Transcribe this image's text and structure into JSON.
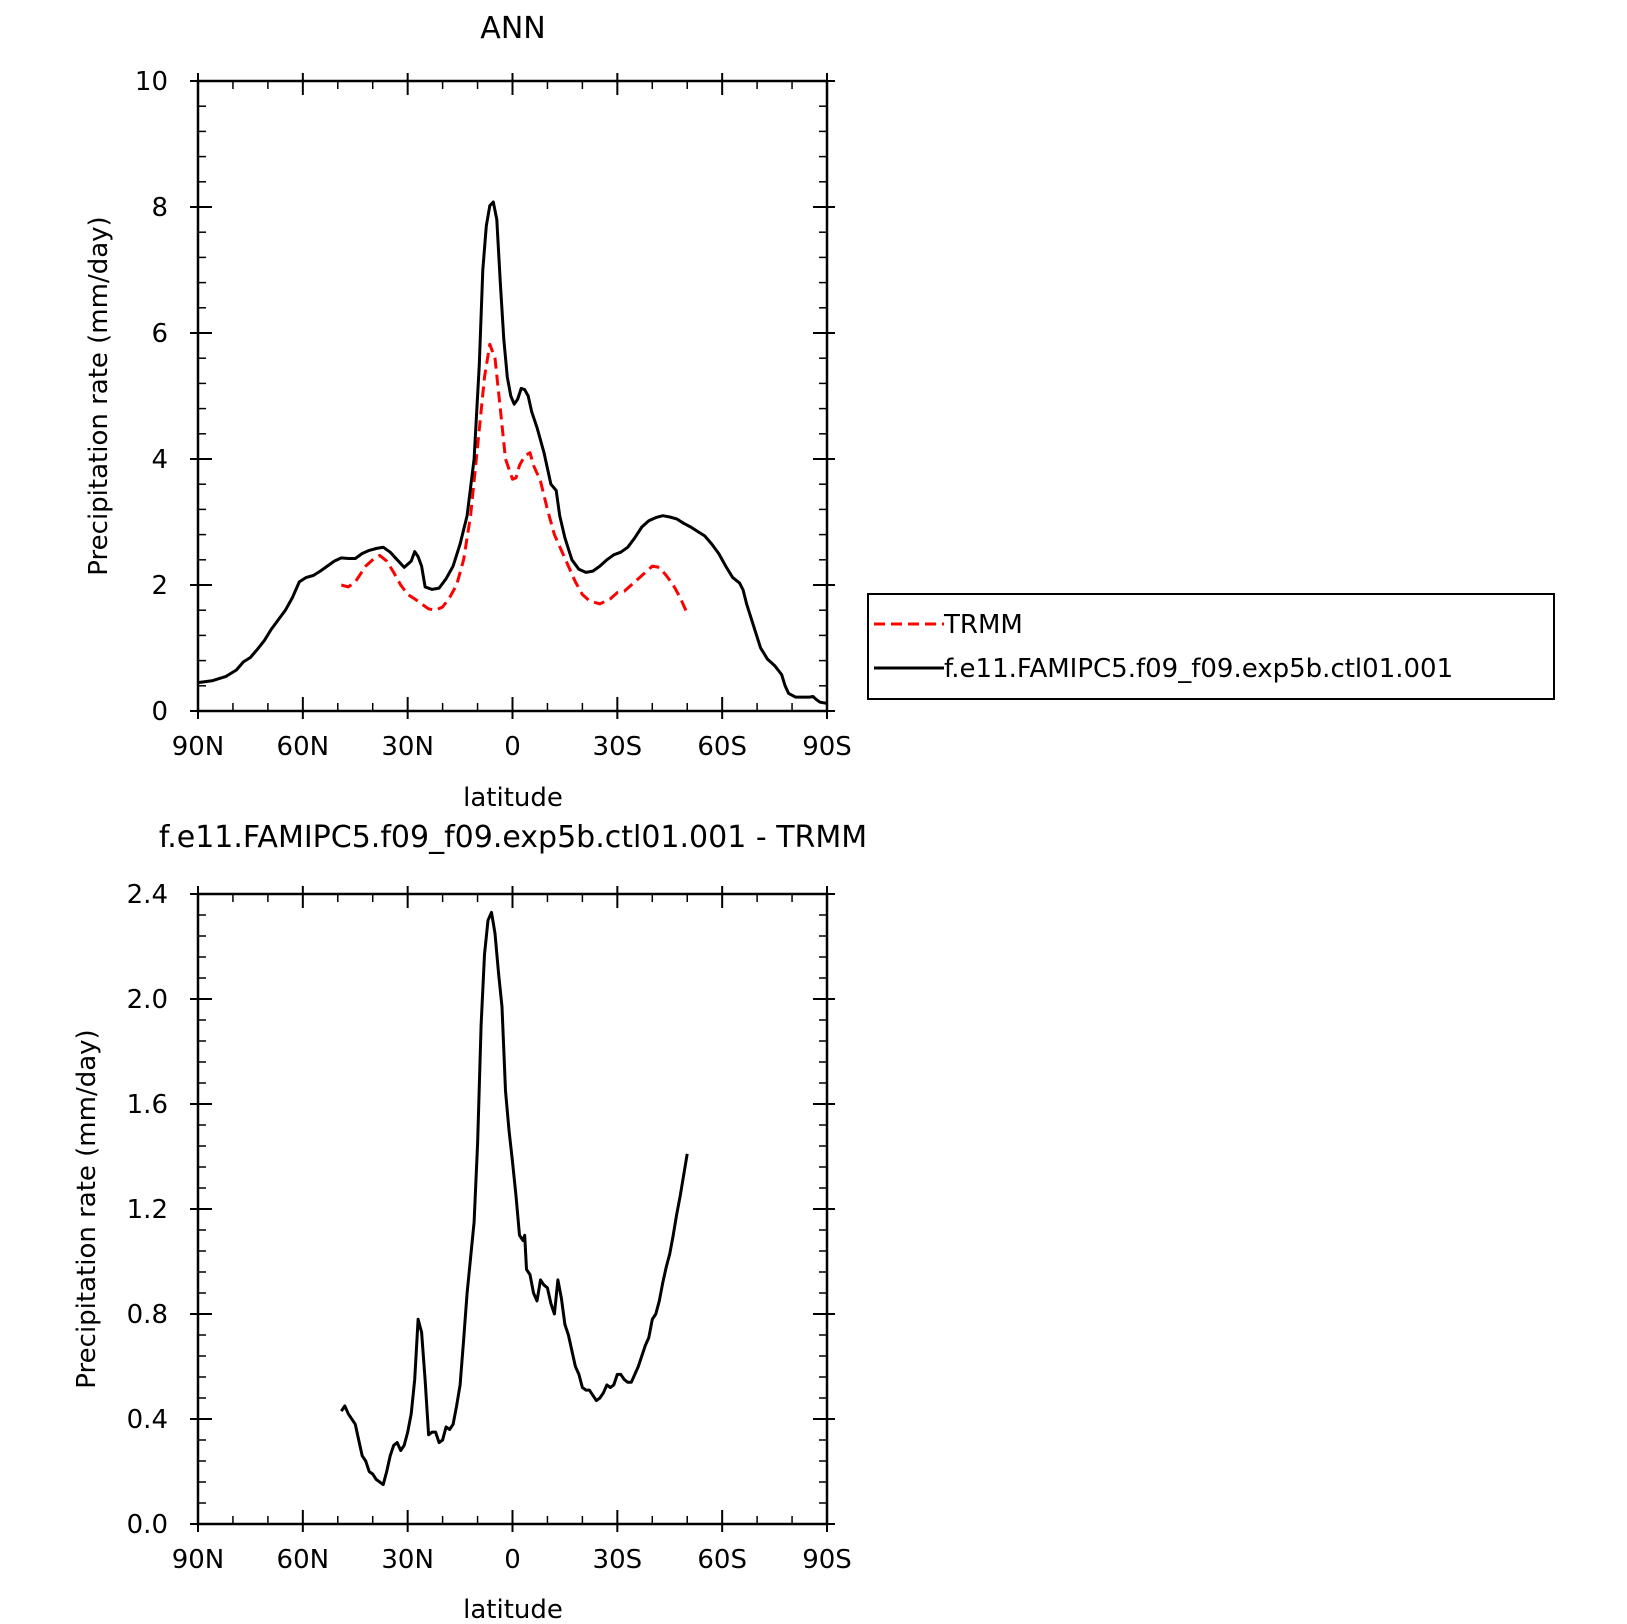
{
  "colors": {
    "trmm": "#ff0000",
    "model": "#000000"
  },
  "chart_data": [
    {
      "type": "line",
      "title": "ANN",
      "xlabel": "latitude",
      "ylabel": "Precipitation rate (mm/day)",
      "xlim": [
        90,
        -90
      ],
      "ylim": [
        0,
        10
      ],
      "x_ticks": [
        {
          "value": 90,
          "label": "90N"
        },
        {
          "value": 60,
          "label": "60N"
        },
        {
          "value": 30,
          "label": "30N"
        },
        {
          "value": 0,
          "label": "0"
        },
        {
          "value": -30,
          "label": "30S"
        },
        {
          "value": -60,
          "label": "60S"
        },
        {
          "value": -90,
          "label": "90S"
        }
      ],
      "y_ticks": [
        {
          "value": 0,
          "label": "0"
        },
        {
          "value": 2,
          "label": "2"
        },
        {
          "value": 4,
          "label": "4"
        },
        {
          "value": 6,
          "label": "6"
        },
        {
          "value": 8,
          "label": "8"
        },
        {
          "value": 10,
          "label": "10"
        }
      ],
      "legend_placement": "right",
      "series": [
        {
          "name": "TRMM",
          "style": "dashed",
          "color": "#ff0000",
          "points": [
            [
              49,
              2.0
            ],
            [
              47,
              1.97
            ],
            [
              45,
              2.05
            ],
            [
              42,
              2.3
            ],
            [
              40,
              2.4
            ],
            [
              38,
              2.47
            ],
            [
              36,
              2.38
            ],
            [
              34,
              2.2
            ],
            [
              32,
              2.0
            ],
            [
              30,
              1.85
            ],
            [
              28,
              1.78
            ],
            [
              26,
              1.7
            ],
            [
              24,
              1.62
            ],
            [
              22,
              1.6
            ],
            [
              20,
              1.65
            ],
            [
              18,
              1.8
            ],
            [
              16,
              2.0
            ],
            [
              14,
              2.4
            ],
            [
              12,
              3.1
            ],
            [
              10,
              4.2
            ],
            [
              8,
              5.3
            ],
            [
              6.5,
              5.82
            ],
            [
              5,
              5.6
            ],
            [
              3.5,
              4.8
            ],
            [
              2,
              4.0
            ],
            [
              0,
              3.68
            ],
            [
              -1,
              3.7
            ],
            [
              -2,
              3.9
            ],
            [
              -3.5,
              4.05
            ],
            [
              -5,
              4.1
            ],
            [
              -6,
              3.9
            ],
            [
              -8,
              3.65
            ],
            [
              -10,
              3.2
            ],
            [
              -12,
              2.8
            ],
            [
              -14,
              2.55
            ],
            [
              -16,
              2.3
            ],
            [
              -18,
              2.05
            ],
            [
              -20,
              1.85
            ],
            [
              -22,
              1.75
            ],
            [
              -25,
              1.7
            ],
            [
              -28,
              1.78
            ],
            [
              -30,
              1.88
            ],
            [
              -32,
              1.9
            ],
            [
              -34,
              2.0
            ],
            [
              -36,
              2.1
            ],
            [
              -38,
              2.2
            ],
            [
              -40,
              2.3
            ],
            [
              -42,
              2.28
            ],
            [
              -44,
              2.15
            ],
            [
              -46,
              2.0
            ],
            [
              -48,
              1.8
            ],
            [
              -50,
              1.55
            ]
          ]
        },
        {
          "name": "f.e11.FAMIPC5.f09_f09.exp5b.ctl01.001",
          "style": "solid",
          "color": "#000000",
          "points": [
            [
              90,
              0.45
            ],
            [
              86,
              0.48
            ],
            [
              82,
              0.55
            ],
            [
              79,
              0.65
            ],
            [
              77,
              0.78
            ],
            [
              75,
              0.85
            ],
            [
              73,
              0.98
            ],
            [
              71,
              1.12
            ],
            [
              69,
              1.3
            ],
            [
              67,
              1.45
            ],
            [
              65,
              1.6
            ],
            [
              63,
              1.8
            ],
            [
              61,
              2.05
            ],
            [
              59,
              2.12
            ],
            [
              57,
              2.15
            ],
            [
              55,
              2.22
            ],
            [
              53,
              2.3
            ],
            [
              51,
              2.38
            ],
            [
              49,
              2.43
            ],
            [
              47,
              2.42
            ],
            [
              45,
              2.42
            ],
            [
              43,
              2.5
            ],
            [
              41,
              2.55
            ],
            [
              39,
              2.58
            ],
            [
              37,
              2.6
            ],
            [
              35,
              2.52
            ],
            [
              33,
              2.4
            ],
            [
              31,
              2.28
            ],
            [
              29,
              2.38
            ],
            [
              28,
              2.53
            ],
            [
              27,
              2.45
            ],
            [
              26,
              2.3
            ],
            [
              25,
              1.97
            ],
            [
              23,
              1.93
            ],
            [
              21,
              1.95
            ],
            [
              19,
              2.1
            ],
            [
              17,
              2.3
            ],
            [
              15,
              2.65
            ],
            [
              13,
              3.1
            ],
            [
              11,
              4.0
            ],
            [
              9.5,
              5.5
            ],
            [
              8.5,
              7.0
            ],
            [
              7.5,
              7.7
            ],
            [
              6.5,
              8.02
            ],
            [
              5.5,
              8.08
            ],
            [
              4.5,
              7.8
            ],
            [
              3.5,
              6.8
            ],
            [
              2.5,
              5.9
            ],
            [
              1.5,
              5.3
            ],
            [
              0.5,
              5.0
            ],
            [
              -0.5,
              4.87
            ],
            [
              -1.5,
              4.95
            ],
            [
              -2.5,
              5.12
            ],
            [
              -3.5,
              5.1
            ],
            [
              -4.5,
              5.0
            ],
            [
              -5.5,
              4.75
            ],
            [
              -7,
              4.5
            ],
            [
              -9,
              4.1
            ],
            [
              -11,
              3.6
            ],
            [
              -12.5,
              3.5
            ],
            [
              -13.5,
              3.1
            ],
            [
              -15,
              2.75
            ],
            [
              -17,
              2.4
            ],
            [
              -19,
              2.25
            ],
            [
              -21,
              2.2
            ],
            [
              -23,
              2.22
            ],
            [
              -25,
              2.3
            ],
            [
              -27,
              2.4
            ],
            [
              -29,
              2.48
            ],
            [
              -31,
              2.52
            ],
            [
              -33,
              2.6
            ],
            [
              -35,
              2.75
            ],
            [
              -37,
              2.92
            ],
            [
              -39,
              3.02
            ],
            [
              -41,
              3.07
            ],
            [
              -43,
              3.1
            ],
            [
              -45,
              3.08
            ],
            [
              -47,
              3.05
            ],
            [
              -49,
              2.98
            ],
            [
              -51,
              2.92
            ],
            [
              -53,
              2.85
            ],
            [
              -55,
              2.78
            ],
            [
              -57,
              2.65
            ],
            [
              -59,
              2.5
            ],
            [
              -61,
              2.3
            ],
            [
              -63,
              2.12
            ],
            [
              -65,
              2.03
            ],
            [
              -66,
              1.92
            ],
            [
              -67,
              1.7
            ],
            [
              -69,
              1.35
            ],
            [
              -71,
              1.0
            ],
            [
              -73,
              0.82
            ],
            [
              -75,
              0.72
            ],
            [
              -77,
              0.58
            ],
            [
              -78,
              0.4
            ],
            [
              -79,
              0.28
            ],
            [
              -81,
              0.22
            ],
            [
              -83,
              0.22
            ],
            [
              -85,
              0.22
            ],
            [
              -86,
              0.23
            ],
            [
              -87,
              0.18
            ],
            [
              -88,
              0.14
            ],
            [
              -90,
              0.12
            ]
          ]
        }
      ]
    },
    {
      "type": "line",
      "title": "f.e11.FAMIPC5.f09_f09.exp5b.ctl01.001 - TRMM",
      "xlabel": "latitude",
      "ylabel": "Precipitation rate (mm/day)",
      "xlim": [
        90,
        -90
      ],
      "ylim": [
        0.0,
        2.4
      ],
      "x_ticks": [
        {
          "value": 90,
          "label": "90N"
        },
        {
          "value": 60,
          "label": "60N"
        },
        {
          "value": 30,
          "label": "30N"
        },
        {
          "value": 0,
          "label": "0"
        },
        {
          "value": -30,
          "label": "30S"
        },
        {
          "value": -60,
          "label": "60S"
        },
        {
          "value": -90,
          "label": "90S"
        }
      ],
      "y_ticks": [
        {
          "value": 0.0,
          "label": "0.0"
        },
        {
          "value": 0.4,
          "label": "0.4"
        },
        {
          "value": 0.8,
          "label": "0.8"
        },
        {
          "value": 1.2,
          "label": "1.2"
        },
        {
          "value": 1.6,
          "label": "1.6"
        },
        {
          "value": 2.0,
          "label": "2.0"
        },
        {
          "value": 2.4,
          "label": "2.4"
        }
      ],
      "series": [
        {
          "style": "solid",
          "color": "#000000",
          "points": [
            [
              49,
              0.43
            ],
            [
              48,
              0.45
            ],
            [
              47,
              0.42
            ],
            [
              45,
              0.38
            ],
            [
              44,
              0.32
            ],
            [
              43,
              0.26
            ],
            [
              42,
              0.24
            ],
            [
              41,
              0.2
            ],
            [
              40,
              0.19
            ],
            [
              39,
              0.17
            ],
            [
              38,
              0.16
            ],
            [
              37,
              0.15
            ],
            [
              36,
              0.2
            ],
            [
              35,
              0.26
            ],
            [
              34,
              0.3
            ],
            [
              33,
              0.31
            ],
            [
              32,
              0.28
            ],
            [
              31,
              0.3
            ],
            [
              30,
              0.35
            ],
            [
              29,
              0.42
            ],
            [
              28,
              0.55
            ],
            [
              27,
              0.78
            ],
            [
              26,
              0.73
            ],
            [
              25,
              0.55
            ],
            [
              24,
              0.34
            ],
            [
              23,
              0.35
            ],
            [
              22,
              0.35
            ],
            [
              21,
              0.31
            ],
            [
              20,
              0.32
            ],
            [
              19,
              0.37
            ],
            [
              18,
              0.36
            ],
            [
              17,
              0.38
            ],
            [
              16,
              0.45
            ],
            [
              15,
              0.53
            ],
            [
              14,
              0.7
            ],
            [
              13,
              0.88
            ],
            [
              11,
              1.15
            ],
            [
              10,
              1.45
            ],
            [
              9,
              1.9
            ],
            [
              8,
              2.17
            ],
            [
              7,
              2.3
            ],
            [
              6,
              2.33
            ],
            [
              5,
              2.25
            ],
            [
              4,
              2.1
            ],
            [
              3,
              1.97
            ],
            [
              2,
              1.65
            ],
            [
              1,
              1.5
            ],
            [
              0,
              1.38
            ],
            [
              -1,
              1.25
            ],
            [
              -2,
              1.1
            ],
            [
              -3,
              1.08
            ],
            [
              -3.5,
              1.1
            ],
            [
              -4,
              0.97
            ],
            [
              -5,
              0.95
            ],
            [
              -6,
              0.88
            ],
            [
              -7,
              0.85
            ],
            [
              -8,
              0.93
            ],
            [
              -9,
              0.91
            ],
            [
              -10,
              0.9
            ],
            [
              -11,
              0.84
            ],
            [
              -12,
              0.8
            ],
            [
              -13,
              0.93
            ],
            [
              -14,
              0.86
            ],
            [
              -15,
              0.76
            ],
            [
              -16,
              0.72
            ],
            [
              -17,
              0.66
            ],
            [
              -18,
              0.6
            ],
            [
              -19,
              0.57
            ],
            [
              -20,
              0.52
            ],
            [
              -21,
              0.51
            ],
            [
              -22,
              0.51
            ],
            [
              -23,
              0.49
            ],
            [
              -24,
              0.47
            ],
            [
              -25,
              0.48
            ],
            [
              -26,
              0.5
            ],
            [
              -27,
              0.53
            ],
            [
              -28,
              0.52
            ],
            [
              -29,
              0.53
            ],
            [
              -30,
              0.57
            ],
            [
              -31,
              0.57
            ],
            [
              -32,
              0.55
            ],
            [
              -33,
              0.54
            ],
            [
              -34,
              0.54
            ],
            [
              -35,
              0.57
            ],
            [
              -36,
              0.6
            ],
            [
              -37,
              0.64
            ],
            [
              -38,
              0.68
            ],
            [
              -39,
              0.71
            ],
            [
              -40,
              0.78
            ],
            [
              -41,
              0.8
            ],
            [
              -42,
              0.85
            ],
            [
              -43,
              0.92
            ],
            [
              -44,
              0.98
            ],
            [
              -45,
              1.03
            ],
            [
              -46,
              1.1
            ],
            [
              -47,
              1.18
            ],
            [
              -48,
              1.25
            ],
            [
              -49,
              1.33
            ],
            [
              -50,
              1.41
            ]
          ]
        }
      ]
    }
  ]
}
